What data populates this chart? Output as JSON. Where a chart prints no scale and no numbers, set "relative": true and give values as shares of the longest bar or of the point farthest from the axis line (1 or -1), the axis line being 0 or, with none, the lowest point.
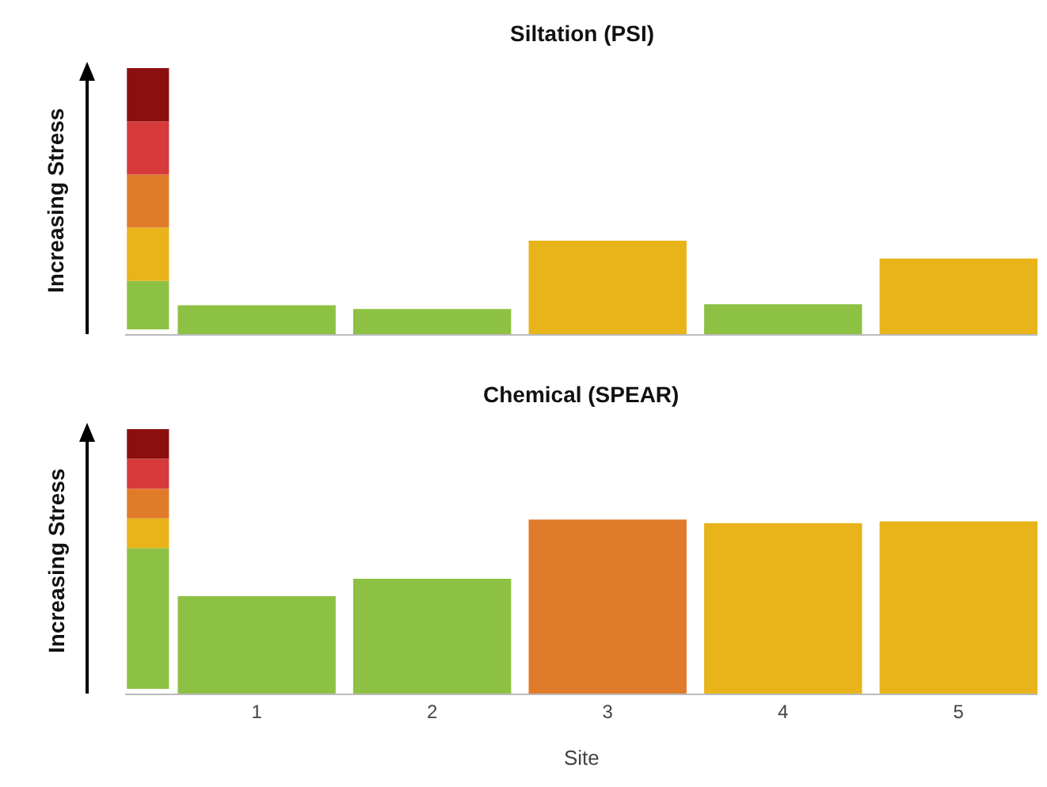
{
  "chart_data": [
    {
      "type": "bar",
      "title": "Siltation (PSI)",
      "ylabel": "Increasing Stress",
      "categories": [
        "1",
        "2",
        "3",
        "4",
        "5"
      ],
      "values": [
        0.31,
        0.27,
        1,
        0.32,
        0.81
      ],
      "colors": [
        "#8dc143",
        "#8dc143",
        "#e8b41a",
        "#8dc143",
        "#e8b41a"
      ],
      "relative": true,
      "tick_labels": false
    },
    {
      "type": "bar",
      "title": "Chemical (SPEAR)",
      "ylabel": "Increasing Stress",
      "xlabel": "Site",
      "categories": [
        "1",
        "2",
        "3",
        "4",
        "5"
      ],
      "values": [
        0.56,
        0.66,
        1,
        0.98,
        0.99
      ],
      "colors": [
        "#8dc143",
        "#8dc143",
        "#e07b2a",
        "#e8b41a",
        "#e8b41a"
      ],
      "relative": true,
      "tick_labels": "x"
    }
  ]
}
